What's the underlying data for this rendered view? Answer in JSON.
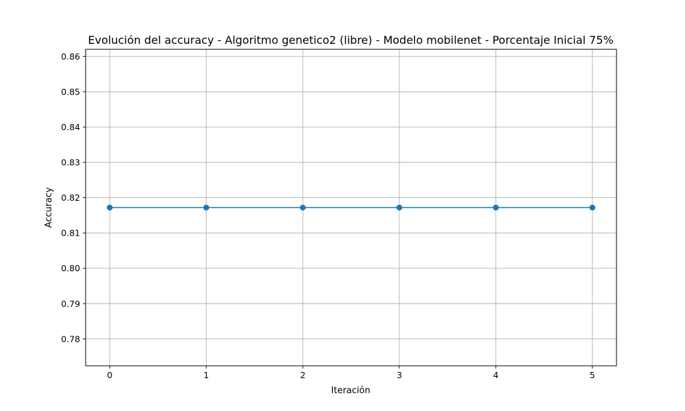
{
  "chart_data": {
    "type": "line",
    "title": "Evolución del accuracy - Algoritmo genetico2 (libre) - Modelo mobilenet - Porcentaje Inicial 75%",
    "xlabel": "Iteración",
    "ylabel": "Accuracy",
    "x": [
      0,
      1,
      2,
      3,
      4,
      5
    ],
    "series": [
      {
        "values": [
          0.8172,
          0.8172,
          0.8172,
          0.8172,
          0.8172,
          0.8172
        ]
      }
    ],
    "xticks": [
      "0",
      "1",
      "2",
      "3",
      "4",
      "5"
    ],
    "yticks": [
      "0.78",
      "0.79",
      "0.80",
      "0.81",
      "0.82",
      "0.83",
      "0.84",
      "0.85",
      "0.86"
    ],
    "xlim": [
      -0.25,
      5.25
    ],
    "ylim": [
      0.7724,
      0.862
    ],
    "grid": true,
    "line_color": "#1f77b4",
    "grid_color": "#b0b0b0"
  }
}
